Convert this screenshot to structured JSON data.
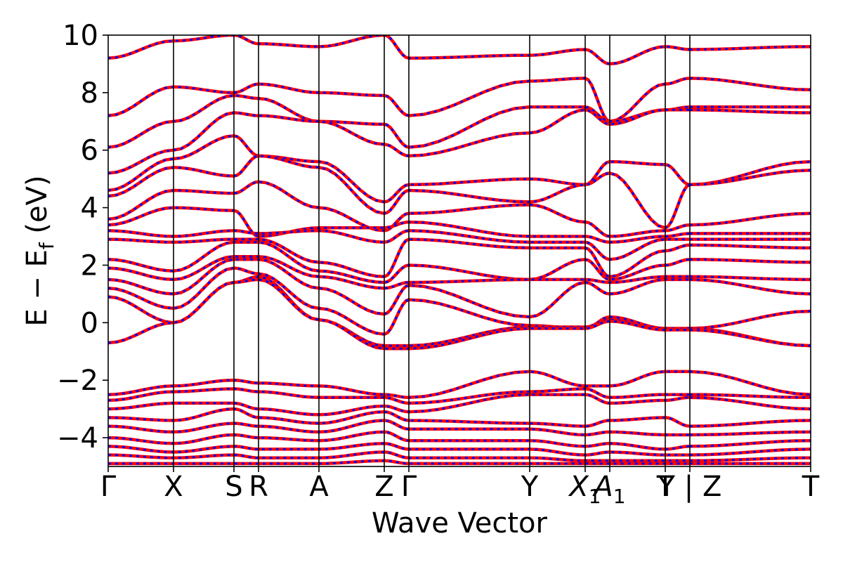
{
  "chart_data": {
    "type": "line",
    "title": "",
    "xlabel": "Wave Vector",
    "ylabel": "E − E",
    "ylabel_sub": "f",
    "ylabel_unit": " (eV)",
    "ylim": [
      -5,
      10
    ],
    "y_ticks": [
      -4,
      -2,
      0,
      2,
      4,
      6,
      8,
      10
    ],
    "y_tick_labels": [
      "−4",
      "−2",
      "0",
      "2",
      "4",
      "6",
      "8",
      "10"
    ],
    "x_range": [
      0,
      1
    ],
    "grid": false,
    "legend": "none",
    "k_points": [
      {
        "label": "Γ",
        "sub": "",
        "x": 0.0
      },
      {
        "label": "X",
        "sub": "",
        "x": 0.093
      },
      {
        "label": "S",
        "sub": "",
        "x": 0.179
      },
      {
        "label": "R",
        "sub": "",
        "x": 0.214
      },
      {
        "label": "A",
        "sub": "",
        "x": 0.3
      },
      {
        "label": "Z",
        "sub": "",
        "x": 0.393
      },
      {
        "label": "Γ",
        "sub": "",
        "x": 0.428
      },
      {
        "label": "Y",
        "sub": "",
        "x": 0.6
      },
      {
        "label": "X",
        "sub": "1",
        "x": 0.679
      },
      {
        "label": "A",
        "sub": "1",
        "x": 0.714
      },
      {
        "label": "T",
        "sub": "",
        "x": 0.793
      },
      {
        "label": "Y | Z",
        "sub": "",
        "x": 0.828
      },
      {
        "label": "T",
        "sub": "",
        "x": 1.0
      }
    ],
    "path_breaks": [
      0.828
    ],
    "series_styles": [
      {
        "color": "#ff0000",
        "style": "solid"
      },
      {
        "color": "#0000ff",
        "style": "dashed"
      }
    ],
    "bands_samples_per_segment": 8,
    "bands": [
      [
        9.2,
        9.8,
        10.0,
        9.7,
        9.6,
        10.0,
        9.2,
        9.3,
        9.5,
        9.0,
        9.6,
        9.5,
        9.6,
        9.5
      ],
      [
        7.2,
        8.2,
        8.0,
        8.3,
        8.0,
        7.9,
        7.2,
        8.4,
        8.5,
        7.0,
        8.3,
        8.5,
        8.1,
        8.4
      ],
      [
        6.1,
        7.0,
        7.9,
        7.8,
        7.0,
        6.9,
        6.1,
        7.5,
        7.5,
        7.0,
        7.4,
        7.5,
        7.5,
        7.5
      ],
      [
        5.2,
        6.0,
        7.3,
        7.2,
        7.0,
        6.2,
        5.8,
        6.6,
        7.4,
        6.9,
        7.4,
        7.4,
        7.3,
        7.4
      ],
      [
        4.6,
        5.7,
        6.5,
        5.8,
        5.6,
        4.2,
        4.8,
        5.0,
        4.8,
        5.6,
        5.5,
        4.8,
        5.6,
        4.8
      ],
      [
        4.4,
        5.4,
        5.1,
        5.8,
        5.4,
        3.8,
        4.6,
        4.2,
        4.8,
        5.2,
        3.3,
        4.8,
        5.3,
        4.8
      ],
      [
        3.6,
        4.6,
        4.5,
        4.9,
        4.0,
        3.2,
        3.8,
        4.1,
        3.5,
        3.0,
        3.2,
        3.4,
        3.8,
        3.4
      ],
      [
        3.4,
        4.0,
        3.9,
        3.0,
        3.3,
        3.3,
        3.5,
        3.0,
        3.0,
        2.8,
        3.0,
        3.1,
        3.1,
        3.1
      ],
      [
        3.2,
        3.0,
        3.2,
        3.1,
        3.2,
        2.8,
        3.2,
        2.8,
        2.8,
        2.2,
        2.9,
        2.9,
        2.9,
        2.9
      ],
      [
        2.9,
        2.8,
        2.9,
        2.9,
        2.1,
        1.6,
        2.9,
        2.6,
        2.6,
        1.6,
        2.5,
        2.7,
        2.6,
        2.7
      ],
      [
        2.2,
        1.8,
        2.8,
        2.8,
        1.8,
        1.4,
        2.0,
        1.5,
        2.2,
        1.5,
        2.0,
        2.2,
        2.1,
        2.2
      ],
      [
        1.9,
        1.5,
        2.3,
        2.3,
        1.6,
        1.2,
        1.4,
        1.5,
        1.5,
        1.4,
        1.6,
        1.6,
        1.5,
        1.6
      ],
      [
        1.5,
        1.0,
        2.2,
        2.2,
        1.2,
        0.3,
        1.3,
        0.2,
        1.4,
        1.0,
        1.5,
        1.5,
        1.0,
        1.5
      ],
      [
        1.2,
        0.5,
        1.9,
        1.7,
        0.5,
        -0.4,
        0.8,
        -0.1,
        -0.2,
        0.2,
        -0.2,
        -0.2,
        0.4,
        -0.2
      ],
      [
        0.9,
        0.0,
        1.4,
        1.6,
        0.1,
        -0.8,
        -0.8,
        -0.15,
        -0.15,
        0.1,
        -0.25,
        -0.2,
        -0.8,
        -0.25
      ],
      [
        -0.7,
        0.0,
        1.4,
        1.5,
        0.1,
        -0.9,
        -0.9,
        -0.2,
        -0.2,
        0.05,
        -0.25,
        -0.25,
        -0.8,
        -0.25
      ],
      [
        -2.5,
        -2.2,
        -2.0,
        -2.1,
        -2.2,
        -2.5,
        -2.6,
        -1.7,
        -2.2,
        -2.2,
        -1.7,
        -1.7,
        -2.5,
        -1.7
      ],
      [
        -2.7,
        -2.4,
        -2.3,
        -2.4,
        -2.6,
        -2.6,
        -2.8,
        -2.4,
        -2.3,
        -2.6,
        -2.5,
        -2.5,
        -2.6,
        -2.5
      ],
      [
        -3.0,
        -2.8,
        -2.8,
        -3.0,
        -3.2,
        -2.9,
        -3.1,
        -2.5,
        -2.5,
        -2.8,
        -2.7,
        -2.6,
        -3.0,
        -2.6
      ],
      [
        -3.3,
        -3.4,
        -3.0,
        -3.3,
        -3.5,
        -3.1,
        -3.4,
        -3.5,
        -3.6,
        -3.4,
        -3.3,
        -3.6,
        -3.4,
        -3.6
      ],
      [
        -3.6,
        -3.8,
        -3.5,
        -3.6,
        -3.8,
        -3.4,
        -3.7,
        -3.7,
        -3.9,
        -3.8,
        -3.9,
        -3.9,
        -3.8,
        -3.9
      ],
      [
        -4.0,
        -4.2,
        -3.9,
        -4.0,
        -4.1,
        -3.8,
        -4.1,
        -4.1,
        -4.3,
        -4.2,
        -4.4,
        -4.3,
        -4.1,
        -4.3
      ],
      [
        -4.3,
        -4.5,
        -4.3,
        -4.4,
        -4.4,
        -4.2,
        -4.4,
        -4.4,
        -4.6,
        -4.5,
        -4.6,
        -4.6,
        -4.4,
        -4.6
      ],
      [
        -4.6,
        -4.7,
        -4.6,
        -4.7,
        -4.7,
        -4.5,
        -4.7,
        -4.7,
        -4.8,
        -4.8,
        -4.8,
        -4.8,
        -4.7,
        -4.8
      ],
      [
        -4.9,
        -4.9,
        -4.9,
        -4.9,
        -4.9,
        -4.8,
        -4.9,
        -4.9,
        -4.9,
        -4.9,
        -4.9,
        -4.9,
        -4.9,
        -4.9
      ]
    ]
  }
}
